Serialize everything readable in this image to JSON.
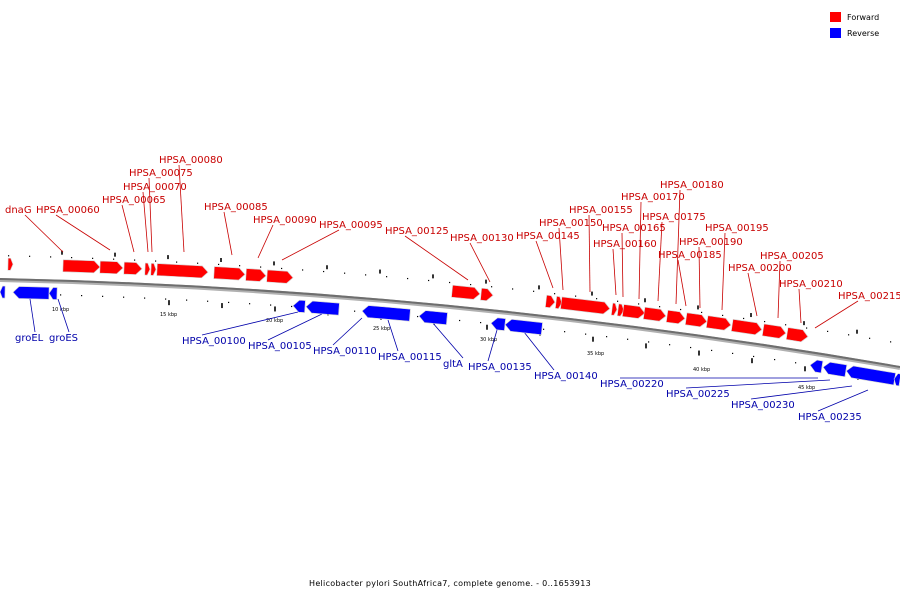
{
  "colors": {
    "forward": "#ff0000",
    "reverse": "#0000ff",
    "forward_label": "#c80000",
    "reverse_label": "#0000aa",
    "backbone": "#7f7f7f"
  },
  "legend": {
    "forward": "Forward",
    "reverse": "Reverse"
  },
  "caption": "Helicobacter pylori SouthAfrica7, complete genome. - 0..1653913",
  "scale": {
    "labels": [
      "10 kbp",
      "15 kbp",
      "20 kbp",
      "25 kbp",
      "30 kbp",
      "35 kbp",
      "40 kbp",
      "45 kbp"
    ]
  },
  "forward_labels": [
    "dnaG",
    "HPSA_00060",
    "HPSA_00065",
    "HPSA_00070",
    "HPSA_00075",
    "HPSA_00080",
    "HPSA_00085",
    "HPSA_00090",
    "HPSA_00095",
    "HPSA_00125",
    "HPSA_00130",
    "HPSA_00145",
    "HPSA_00150",
    "HPSA_00155",
    "HPSA_00160",
    "HPSA_00165",
    "HPSA_00170",
    "HPSA_00175",
    "HPSA_00180",
    "HPSA_00185",
    "HPSA_00190",
    "HPSA_00195",
    "HPSA_00200",
    "HPSA_00205",
    "HPSA_00210",
    "HPSA_00215"
  ],
  "reverse_labels": [
    "groEL",
    "groES",
    "HPSA_00100",
    "HPSA_00105",
    "HPSA_00110",
    "HPSA_00115",
    "gltA",
    "HPSA_00135",
    "HPSA_00140",
    "HPSA_00220",
    "HPSA_00225",
    "HPSA_00230",
    "HPSA_00235"
  ]
}
